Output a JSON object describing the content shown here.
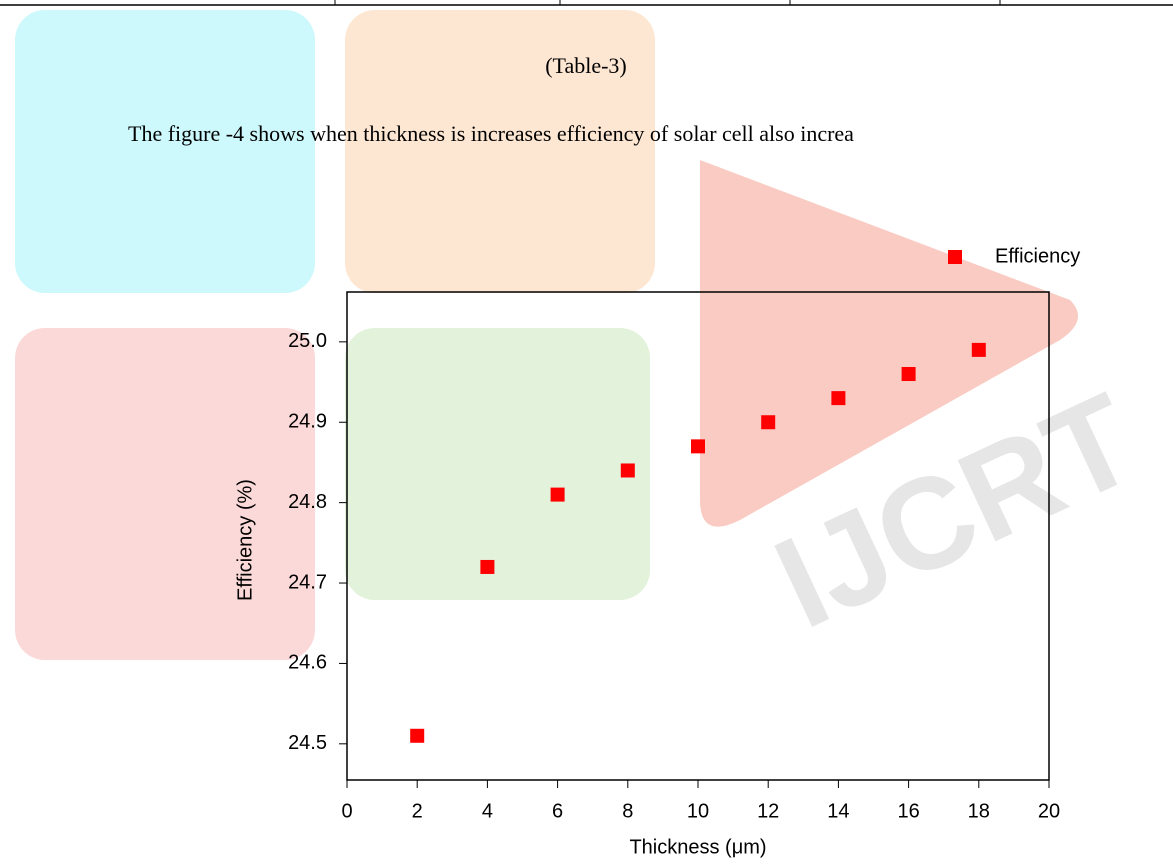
{
  "document": {
    "caption": "(Table-3)",
    "paragraph": "The figure -4 shows when thickness is increases efficiency of solar cell also increa",
    "watermark": "IJCRT"
  },
  "chart_data": {
    "type": "scatter",
    "x_label": "Thickness (μm)",
    "y_label": "Efficiency (%)",
    "x": [
      2,
      4,
      6,
      8,
      10,
      12,
      14,
      16,
      18
    ],
    "series": [
      {
        "name": "Efficiency",
        "color": "#ff0000",
        "values": [
          24.51,
          24.72,
          24.81,
          24.84,
          24.87,
          24.9,
          24.93,
          24.96,
          24.99
        ]
      }
    ],
    "xlim": [
      0,
      20
    ],
    "xticks": [
      0,
      2,
      4,
      6,
      8,
      10,
      12,
      14,
      16,
      18,
      20
    ],
    "ylim": [
      24.455,
      25.062
    ],
    "yticks": [
      {
        "value": 24.5,
        "label": "24.5"
      },
      {
        "value": 24.6,
        "label": "24.6"
      },
      {
        "value": 24.7,
        "label": "24.7"
      },
      {
        "value": 24.8,
        "label": "24.8"
      },
      {
        "value": 24.9,
        "label": "24.9"
      },
      {
        "value": 25.0,
        "label": "25.0"
      }
    ],
    "legend": "upper right"
  }
}
